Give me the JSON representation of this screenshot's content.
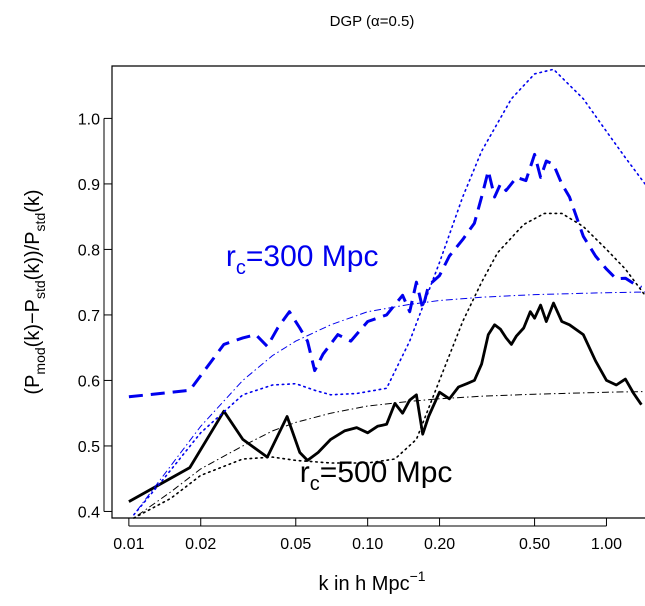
{
  "chart_data": {
    "type": "line",
    "title": "DGP (α=0.5)",
    "xlabel_main": "k in h Mpc",
    "xlabel_sup": "−1",
    "ylabel": "(Pmod(k)−Pstd(k))/Pstd(k)",
    "x_scale": "log",
    "xlim": [
      0.0085,
      1.45
    ],
    "ylim": [
      0.39,
      1.08
    ],
    "x_ticks": [
      0.01,
      0.02,
      0.05,
      0.1,
      0.2,
      0.5,
      1.0
    ],
    "x_tick_labels": [
      "0.01",
      "0.02",
      "0.05",
      "0.10",
      "0.20",
      "0.50",
      "1.00"
    ],
    "y_ticks": [
      0.4,
      0.5,
      0.6,
      0.7,
      0.8,
      0.9,
      1.0
    ],
    "y_tick_labels": [
      "0.4",
      "0.5",
      "0.6",
      "0.7",
      "0.8",
      "0.9",
      "1.0"
    ],
    "grid": false,
    "legend": "none",
    "annotations": [
      {
        "base": "r",
        "sub": "c",
        "text": "=300 Mpc",
        "color": "#0000ee",
        "at": [
          0.0255,
          0.775
        ]
      },
      {
        "base": "r",
        "sub": "c",
        "text": "=500 Mpc",
        "color": "#000000",
        "at": [
          0.052,
          0.445
        ]
      }
    ],
    "colors": {
      "blue": "#0000ee",
      "black": "#000000"
    },
    "series": [
      {
        "style": "solid",
        "color": "#000000",
        "points": [
          [
            0.01,
            0.415
          ],
          [
            0.018,
            0.467
          ],
          [
            0.025,
            0.553
          ],
          [
            0.03,
            0.51
          ],
          [
            0.038,
            0.483
          ],
          [
            0.046,
            0.545
          ],
          [
            0.052,
            0.49
          ],
          [
            0.056,
            0.478
          ],
          [
            0.062,
            0.49
          ],
          [
            0.07,
            0.51
          ],
          [
            0.08,
            0.523
          ],
          [
            0.09,
            0.528
          ],
          [
            0.1,
            0.52
          ],
          [
            0.11,
            0.53
          ],
          [
            0.12,
            0.533
          ],
          [
            0.13,
            0.565
          ],
          [
            0.14,
            0.55
          ],
          [
            0.15,
            0.57
          ],
          [
            0.16,
            0.578
          ],
          [
            0.17,
            0.518
          ],
          [
            0.18,
            0.545
          ],
          [
            0.2,
            0.582
          ],
          [
            0.22,
            0.572
          ],
          [
            0.24,
            0.59
          ],
          [
            0.26,
            0.595
          ],
          [
            0.28,
            0.6
          ],
          [
            0.3,
            0.625
          ],
          [
            0.32,
            0.67
          ],
          [
            0.34,
            0.685
          ],
          [
            0.36,
            0.678
          ],
          [
            0.38,
            0.665
          ],
          [
            0.4,
            0.655
          ],
          [
            0.42,
            0.668
          ],
          [
            0.45,
            0.68
          ],
          [
            0.48,
            0.705
          ],
          [
            0.5,
            0.695
          ],
          [
            0.53,
            0.715
          ],
          [
            0.56,
            0.69
          ],
          [
            0.6,
            0.718
          ],
          [
            0.65,
            0.69
          ],
          [
            0.7,
            0.685
          ],
          [
            0.8,
            0.67
          ],
          [
            0.9,
            0.63
          ],
          [
            1.0,
            0.6
          ],
          [
            1.1,
            0.593
          ],
          [
            1.2,
            0.602
          ],
          [
            1.3,
            0.58
          ],
          [
            1.4,
            0.563
          ]
        ]
      },
      {
        "style": "dashed",
        "color": "#0000ee",
        "points": [
          [
            0.01,
            0.575
          ],
          [
            0.018,
            0.585
          ],
          [
            0.025,
            0.655
          ],
          [
            0.03,
            0.665
          ],
          [
            0.034,
            0.67
          ],
          [
            0.038,
            0.652
          ],
          [
            0.042,
            0.68
          ],
          [
            0.047,
            0.705
          ],
          [
            0.052,
            0.68
          ],
          [
            0.056,
            0.66
          ],
          [
            0.06,
            0.615
          ],
          [
            0.065,
            0.64
          ],
          [
            0.075,
            0.67
          ],
          [
            0.085,
            0.66
          ],
          [
            0.1,
            0.69
          ],
          [
            0.12,
            0.7
          ],
          [
            0.14,
            0.73
          ],
          [
            0.15,
            0.705
          ],
          [
            0.16,
            0.75
          ],
          [
            0.17,
            0.71
          ],
          [
            0.18,
            0.745
          ],
          [
            0.2,
            0.76
          ],
          [
            0.22,
            0.79
          ],
          [
            0.25,
            0.815
          ],
          [
            0.28,
            0.84
          ],
          [
            0.3,
            0.88
          ],
          [
            0.32,
            0.92
          ],
          [
            0.34,
            0.88
          ],
          [
            0.36,
            0.9
          ],
          [
            0.38,
            0.89
          ],
          [
            0.42,
            0.91
          ],
          [
            0.46,
            0.905
          ],
          [
            0.5,
            0.945
          ],
          [
            0.53,
            0.91
          ],
          [
            0.56,
            0.935
          ],
          [
            0.6,
            0.93
          ],
          [
            0.65,
            0.9
          ],
          [
            0.7,
            0.88
          ],
          [
            0.8,
            0.82
          ],
          [
            0.9,
            0.79
          ],
          [
            1.0,
            0.77
          ],
          [
            1.1,
            0.755
          ],
          [
            1.2,
            0.756
          ],
          [
            1.3,
            0.748
          ],
          [
            1.4,
            0.742
          ]
        ]
      },
      {
        "style": "dotted",
        "color": "#0000ee",
        "points": [
          [
            0.0105,
            0.395
          ],
          [
            0.014,
            0.45
          ],
          [
            0.02,
            0.52
          ],
          [
            0.03,
            0.578
          ],
          [
            0.04,
            0.593
          ],
          [
            0.05,
            0.595
          ],
          [
            0.06,
            0.585
          ],
          [
            0.07,
            0.578
          ],
          [
            0.09,
            0.58
          ],
          [
            0.12,
            0.588
          ],
          [
            0.15,
            0.66
          ],
          [
            0.2,
            0.78
          ],
          [
            0.25,
            0.88
          ],
          [
            0.3,
            0.95
          ],
          [
            0.4,
            1.03
          ],
          [
            0.5,
            1.068
          ],
          [
            0.6,
            1.075
          ],
          [
            0.8,
            1.03
          ],
          [
            1.0,
            0.98
          ],
          [
            1.2,
            0.94
          ],
          [
            1.45,
            0.9
          ]
        ]
      },
      {
        "style": "dotted",
        "color": "#000000",
        "points": [
          [
            0.0105,
            0.39
          ],
          [
            0.015,
            0.42
          ],
          [
            0.02,
            0.455
          ],
          [
            0.03,
            0.48
          ],
          [
            0.04,
            0.483
          ],
          [
            0.05,
            0.478
          ],
          [
            0.07,
            0.474
          ],
          [
            0.1,
            0.474
          ],
          [
            0.13,
            0.48
          ],
          [
            0.16,
            0.51
          ],
          [
            0.2,
            0.6
          ],
          [
            0.25,
            0.69
          ],
          [
            0.3,
            0.75
          ],
          [
            0.35,
            0.795
          ],
          [
            0.45,
            0.838
          ],
          [
            0.55,
            0.855
          ],
          [
            0.65,
            0.855
          ],
          [
            0.8,
            0.835
          ],
          [
            1.0,
            0.8
          ],
          [
            1.2,
            0.77
          ],
          [
            1.45,
            0.73
          ]
        ]
      },
      {
        "style": "dotdash",
        "color": "#0000ee",
        "points": [
          [
            0.0105,
            0.395
          ],
          [
            0.015,
            0.47
          ],
          [
            0.02,
            0.53
          ],
          [
            0.03,
            0.6
          ],
          [
            0.04,
            0.638
          ],
          [
            0.05,
            0.66
          ],
          [
            0.07,
            0.685
          ],
          [
            0.1,
            0.705
          ],
          [
            0.15,
            0.716
          ],
          [
            0.2,
            0.722
          ],
          [
            0.3,
            0.727
          ],
          [
            0.5,
            0.731
          ],
          [
            0.8,
            0.733
          ],
          [
            1.0,
            0.734
          ],
          [
            1.45,
            0.735
          ]
        ]
      },
      {
        "style": "dotdash",
        "color": "#000000",
        "points": [
          [
            0.0105,
            0.39
          ],
          [
            0.015,
            0.43
          ],
          [
            0.02,
            0.465
          ],
          [
            0.03,
            0.5
          ],
          [
            0.04,
            0.523
          ],
          [
            0.05,
            0.536
          ],
          [
            0.07,
            0.55
          ],
          [
            0.1,
            0.561
          ],
          [
            0.15,
            0.568
          ],
          [
            0.2,
            0.572
          ],
          [
            0.3,
            0.576
          ],
          [
            0.5,
            0.579
          ],
          [
            0.8,
            0.581
          ],
          [
            1.0,
            0.582
          ],
          [
            1.45,
            0.583
          ]
        ]
      }
    ]
  }
}
